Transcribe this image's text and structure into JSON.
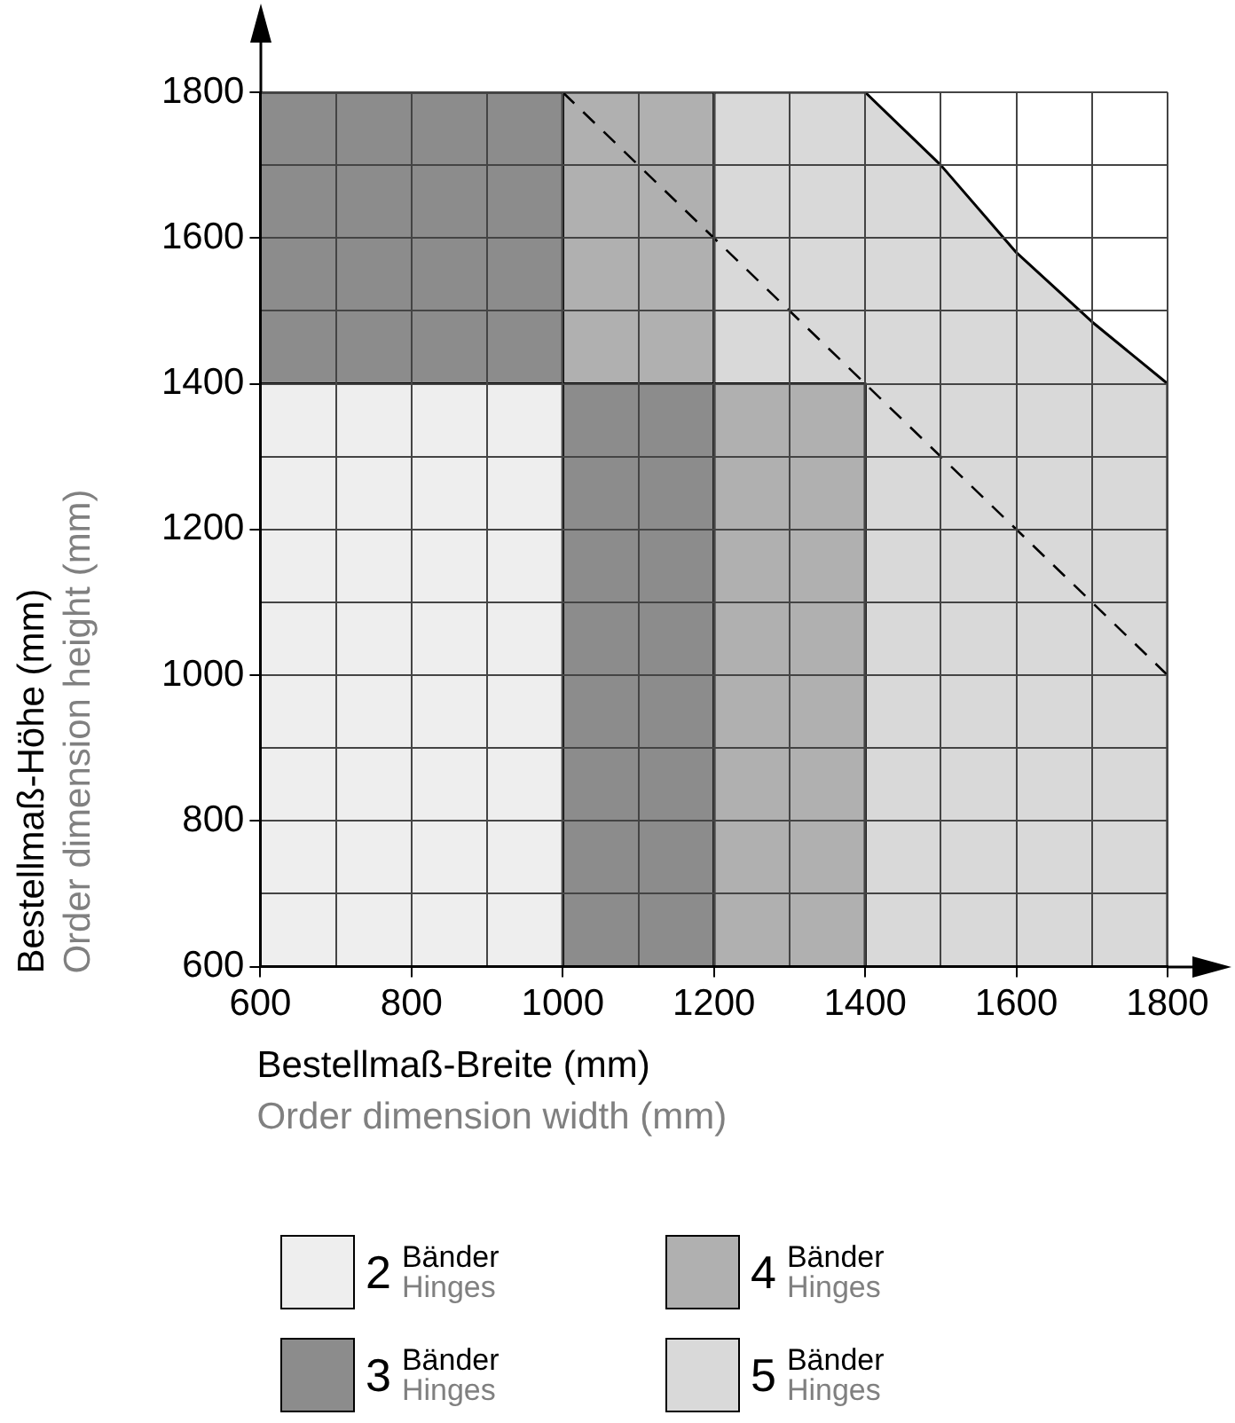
{
  "chart_data": {
    "type": "area",
    "xlabel": "Bestellmaß-Breite (mm)\nOrder dimension width (mm)",
    "ylabel": "Bestellmaß-Höhe (mm)\nOrder dimension height (mm)",
    "xlim": [
      600,
      1800
    ],
    "ylim": [
      600,
      1800
    ],
    "xticks": [
      600,
      {
        "value": 700,
        "label": null
      },
      800,
      {
        "value": 900,
        "label": null
      },
      1000,
      {
        "value": 1100,
        "label": null
      },
      1200,
      {
        "value": 1300,
        "label": null
      },
      1400,
      {
        "value": 1500,
        "label": null
      },
      1600,
      {
        "value": 1700,
        "label": null
      },
      1800
    ],
    "yticks": [
      600,
      {
        "value": 700,
        "label": null
      },
      800,
      {
        "value": 900,
        "label": null
      },
      1000,
      {
        "value": 1100,
        "label": null
      },
      1200,
      {
        "value": 1300,
        "label": null
      },
      1400,
      {
        "value": 1500,
        "label": null
      },
      1600,
      {
        "value": 1700,
        "label": null
      },
      1800
    ],
    "grid": true,
    "legend": "bottom",
    "series": [
      {
        "name": "2 Bänder Hinges",
        "color": "#eeeeee",
        "x": [
          600,
          1000,
          1000,
          600,
          600
        ],
        "values": [
          600,
          600,
          1400,
          1400,
          600
        ]
      },
      {
        "name": "3 Bänder Hinges",
        "color": "#8c8c8c",
        "x": [
          600,
          1000,
          1000,
          1200,
          1200,
          1000,
          1000,
          600,
          600
        ],
        "values": [
          1400,
          1400,
          600,
          600,
          1400,
          1400,
          1800,
          1800,
          1400
        ]
      },
      {
        "name": "4 Bänder Hinges",
        "color": "#b0b0b0",
        "x": [
          1000,
          1200,
          1200,
          1400,
          1400,
          1200,
          1200,
          1000,
          1000
        ],
        "values": [
          1400,
          1400,
          600,
          600,
          1400,
          1400,
          1800,
          1800,
          1400
        ]
      },
      {
        "name": "5 Bänder Hinges",
        "color": "#d9d9d9",
        "x": [
          1200,
          1400,
          1400,
          1800,
          1800,
          1700,
          1600,
          1500,
          1400,
          1200,
          1200
        ],
        "values": [
          1400,
          1400,
          600,
          600,
          1400,
          1485,
          1580,
          1700,
          1800,
          1800,
          1400
        ]
      },
      {
        "type": "line",
        "color": "#000000",
        "line_style": "dashed",
        "x": [
          1000,
          1800
        ],
        "values": [
          1800,
          1000
        ]
      }
    ]
  }
}
